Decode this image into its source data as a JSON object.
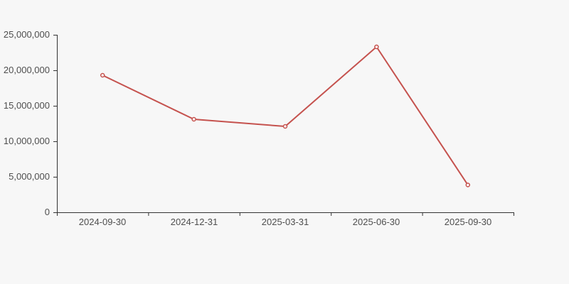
{
  "page": {
    "background_color": "#f7f7f7"
  },
  "chart_data": {
    "type": "line",
    "title": "",
    "categories": [
      "2024-09-30",
      "2024-12-31",
      "2025-03-31",
      "2025-06-30",
      "2025-09-30"
    ],
    "series": [
      {
        "name": "value",
        "values": [
          19300000,
          13100000,
          12100000,
          23300000,
          3850000
        ],
        "color": "#c5524e",
        "marker": "empty-circle",
        "line_width": 2
      }
    ],
    "xlabel": "",
    "ylabel": "",
    "ylim": [
      0,
      25000000
    ],
    "y_tick_interval": 5000000,
    "y_tick_labels": [
      "25,000,000",
      "20,000,000",
      "15,000,000",
      "10,000,000",
      "5,000,000",
      "0"
    ],
    "grid": false,
    "legend": false,
    "axis_color": "#333333",
    "label_color": "#4e4e4e"
  }
}
